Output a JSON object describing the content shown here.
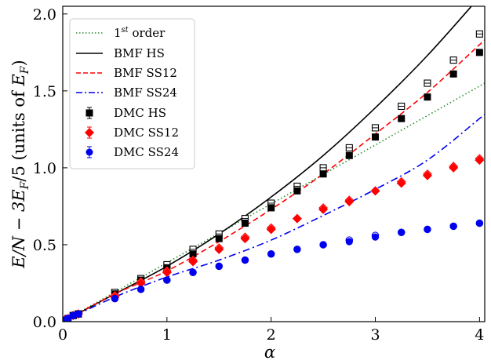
{
  "chart_data": {
    "type": "scatter",
    "xlabel": "α",
    "ylabel": "E/N − 3E_F/5 (units of E_F)",
    "ylabel_parts": {
      "main": "E/N − 3E",
      "sub1": "F",
      "mid": "/5 (units of ",
      "E": "E",
      "sub2": "F",
      "close": ")"
    },
    "xlim": [
      0,
      4.05
    ],
    "ylim": [
      0,
      2.05
    ],
    "xticks": [
      "0",
      "1",
      "2",
      "3",
      "4"
    ],
    "yticks": [
      "0.0",
      "0.5",
      "1.0",
      "1.5",
      "2.0"
    ],
    "legend_position": "top-left",
    "legend": {
      "first_order": {
        "base": "1",
        "sup": "st",
        "rest": " order"
      },
      "bmf_hs": "BMF HS",
      "bmf_ss12": "BMF SS12",
      "bmf_ss24": "BMF SS24",
      "dmc_hs": "DMC HS",
      "dmc_ss12": "DMC SS12",
      "dmc_ss24": "DMC SS24"
    },
    "colors": {
      "first_order": "#2a8a2a",
      "hs": "#000000",
      "ss12": "#ff0000",
      "ss24": "#0000ee"
    },
    "series": [
      {
        "name": "1st order",
        "kind": "line",
        "style": "dotted",
        "color": "#2a8a2a",
        "x": [
          0,
          4.05
        ],
        "y": [
          0,
          1.55
        ]
      },
      {
        "name": "BMF HS",
        "kind": "line",
        "style": "solid",
        "color": "#000000",
        "x": [
          0,
          0.5,
          1,
          1.5,
          2,
          2.5,
          3,
          3.5,
          4,
          4.05
        ],
        "y": [
          0,
          0.18,
          0.36,
          0.57,
          0.81,
          1.08,
          1.39,
          1.73,
          2.11,
          2.15
        ]
      },
      {
        "name": "BMF SS12",
        "kind": "line",
        "style": "dashed",
        "color": "#ff0000",
        "x": [
          0,
          0.5,
          1,
          1.5,
          2,
          2.5,
          3,
          3.5,
          4,
          4.05
        ],
        "y": [
          0,
          0.18,
          0.33,
          0.52,
          0.73,
          0.96,
          1.22,
          1.49,
          1.8,
          1.83
        ]
      },
      {
        "name": "BMF SS24",
        "kind": "line",
        "style": "dashdot",
        "color": "#0000ee",
        "x": [
          0,
          0.5,
          1,
          1.5,
          2,
          2.5,
          3,
          3.5,
          4,
          4.05
        ],
        "y": [
          0,
          0.16,
          0.29,
          0.4,
          0.53,
          0.69,
          0.86,
          1.05,
          1.32,
          1.35
        ]
      },
      {
        "name": "DMC HS",
        "kind": "points",
        "marker": "square",
        "color": "#000000",
        "x": [
          0.02,
          0.05,
          0.1,
          0.15,
          0.5,
          0.75,
          1,
          1.25,
          1.5,
          1.75,
          2,
          2.25,
          2.5,
          2.75,
          3,
          3.25,
          3.5,
          3.75,
          4
        ],
        "y": [
          0.01,
          0.02,
          0.04,
          0.05,
          0.18,
          0.27,
          0.35,
          0.44,
          0.54,
          0.64,
          0.74,
          0.85,
          0.96,
          1.08,
          1.2,
          1.32,
          1.46,
          1.61,
          1.75
        ],
        "open_y": [
          0.01,
          0.02,
          0.04,
          0.05,
          0.19,
          0.28,
          0.37,
          0.47,
          0.57,
          0.67,
          0.77,
          0.88,
          1.0,
          1.13,
          1.26,
          1.4,
          1.55,
          1.7,
          1.87
        ]
      },
      {
        "name": "DMC SS12",
        "kind": "points",
        "marker": "diamond",
        "color": "#ff0000",
        "x": [
          0.02,
          0.05,
          0.1,
          0.15,
          0.5,
          0.75,
          1,
          1.25,
          1.5,
          1.75,
          2,
          2.25,
          2.5,
          2.75,
          3,
          3.25,
          3.5,
          3.75,
          4
        ],
        "y": [
          0.01,
          0.02,
          0.04,
          0.05,
          0.16,
          0.25,
          0.32,
          0.39,
          0.47,
          0.54,
          0.6,
          0.67,
          0.73,
          0.78,
          0.85,
          0.9,
          0.95,
          1.0,
          1.05
        ],
        "open_y": [
          0.01,
          0.02,
          0.04,
          0.05,
          0.17,
          0.26,
          0.33,
          0.4,
          0.48,
          0.55,
          0.61,
          0.67,
          0.74,
          0.79,
          0.85,
          0.91,
          0.96,
          1.01,
          1.06
        ]
      },
      {
        "name": "DMC SS24",
        "kind": "points",
        "marker": "circle",
        "color": "#0000ee",
        "x": [
          0.02,
          0.05,
          0.1,
          0.15,
          0.5,
          0.75,
          1,
          1.25,
          1.5,
          1.75,
          2,
          2.25,
          2.5,
          2.75,
          3,
          3.25,
          3.5,
          3.75,
          4
        ],
        "y": [
          0.01,
          0.02,
          0.04,
          0.05,
          0.15,
          0.21,
          0.27,
          0.32,
          0.36,
          0.4,
          0.44,
          0.47,
          0.5,
          0.52,
          0.55,
          0.58,
          0.6,
          0.62,
          0.64
        ],
        "open_y": [
          0.01,
          0.02,
          0.04,
          0.05,
          0.15,
          0.21,
          0.27,
          0.32,
          0.36,
          0.4,
          0.44,
          0.47,
          0.5,
          0.53,
          0.56,
          0.58,
          0.6,
          0.62,
          0.64
        ]
      }
    ]
  }
}
